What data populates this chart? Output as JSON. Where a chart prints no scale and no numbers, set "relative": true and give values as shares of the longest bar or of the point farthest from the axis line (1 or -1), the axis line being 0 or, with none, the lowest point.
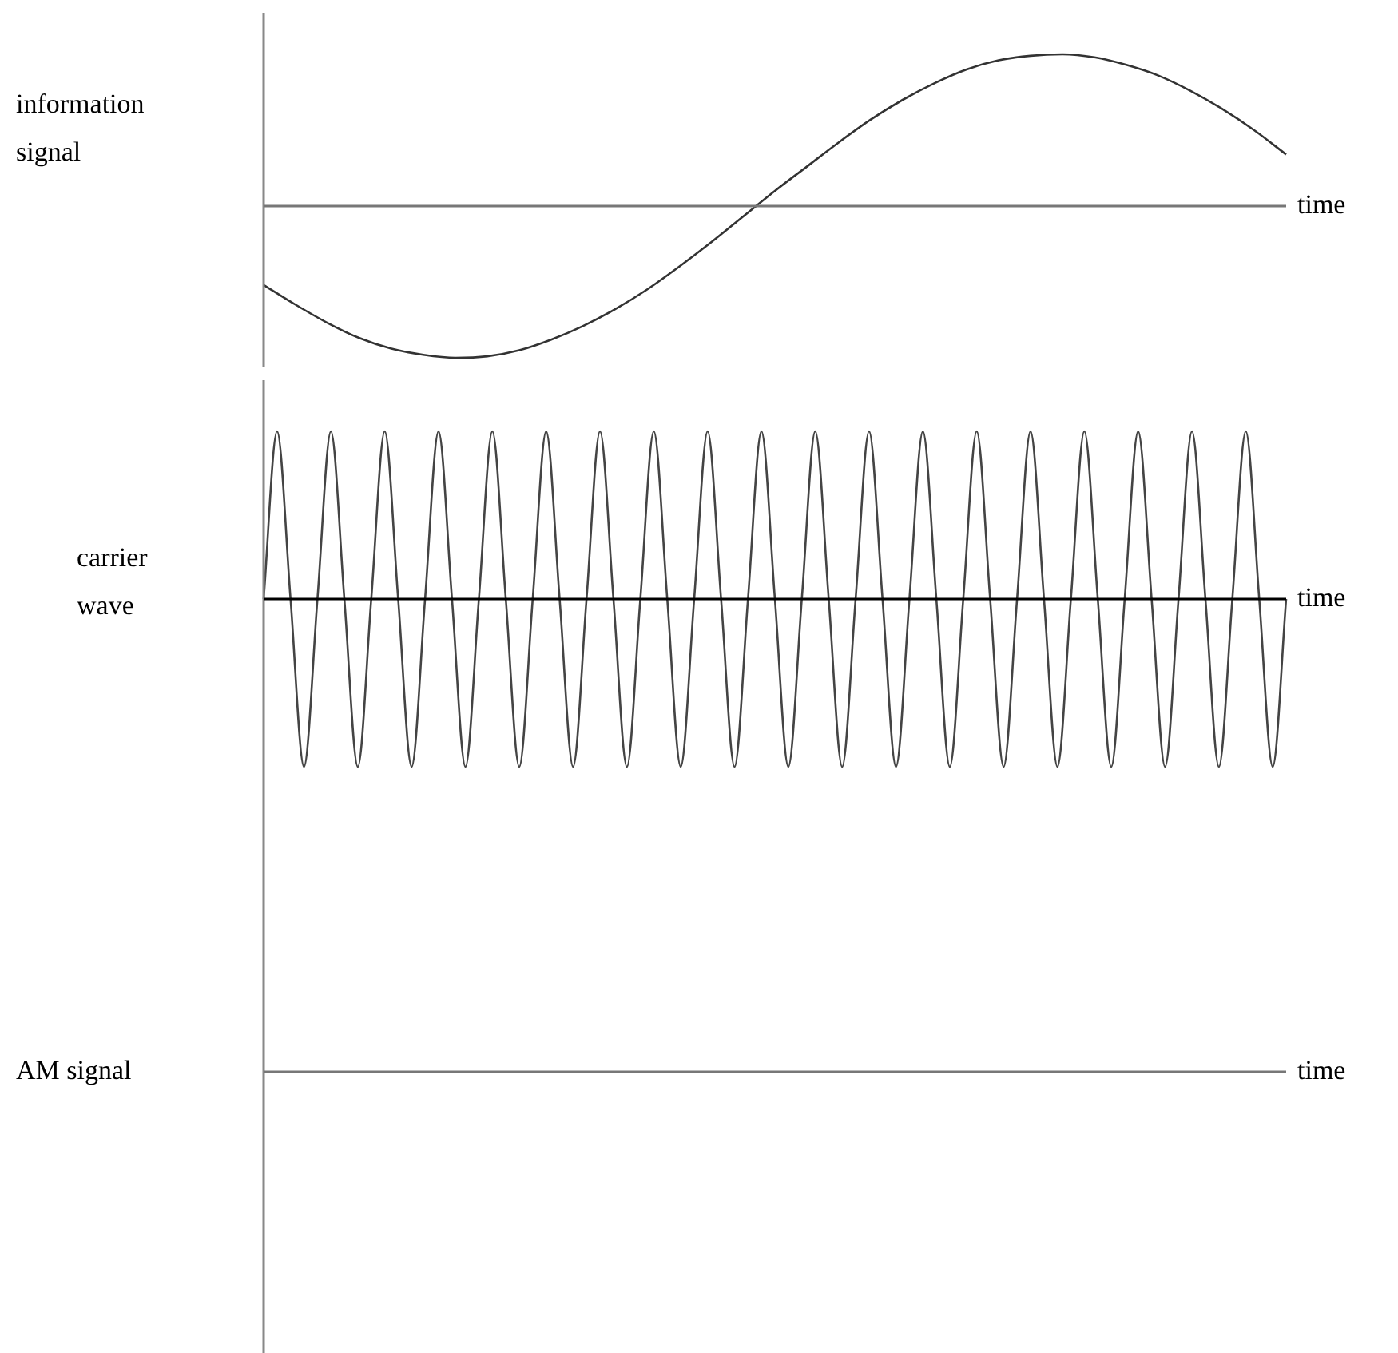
{
  "chart_data": [
    {
      "type": "line",
      "relative": true,
      "ylabel": "information signal",
      "xlabel": "time",
      "legend": false,
      "marker": "none",
      "line_style": "solid",
      "categories": [
        null,
        null,
        null,
        null,
        null,
        null,
        null,
        null,
        null,
        null,
        null,
        null,
        null,
        null,
        null,
        null,
        null,
        null,
        null,
        null,
        null,
        null,
        null,
        null,
        null,
        null,
        null,
        null,
        null,
        null,
        null,
        null,
        null
      ],
      "series": [
        {
          "color": "#333333",
          "values": [
            -0.52,
            -0.65,
            -0.77,
            -0.87,
            -0.94,
            -0.98,
            -1,
            -0.99,
            -0.95,
            -0.88,
            -0.79,
            -0.68,
            -0.55,
            -0.4,
            -0.24,
            -0.07,
            0.1,
            0.26,
            0.42,
            0.57,
            0.7,
            0.81,
            0.9,
            0.96,
            0.99,
            1,
            0.98,
            0.93,
            0.86,
            0.76,
            0.64,
            0.5,
            0.34
          ]
        }
      ]
    },
    {
      "type": "line",
      "relative": true,
      "ylabel": "carrier wave",
      "xlabel": "time",
      "legend": false,
      "marker": "none",
      "line_style": "solid",
      "categories": [
        null,
        null,
        null,
        null,
        null,
        null,
        null,
        null,
        null,
        null,
        null,
        null,
        null,
        null,
        null,
        null,
        null,
        null,
        null,
        null,
        null,
        null,
        null,
        null,
        null,
        null,
        null,
        null,
        null,
        null,
        null,
        null,
        null,
        null,
        null,
        null,
        null,
        null,
        null,
        null,
        null,
        null,
        null,
        null,
        null,
        null,
        null,
        null,
        null,
        null,
        null,
        null,
        null,
        null,
        null,
        null,
        null,
        null,
        null,
        null,
        null,
        null,
        null,
        null,
        null,
        null,
        null,
        null,
        null,
        null,
        null,
        null,
        null,
        null,
        null,
        null,
        null
      ],
      "series": [
        {
          "color": "#444444",
          "values": [
            0,
            1,
            0,
            -1,
            0,
            1,
            0,
            -1,
            0,
            1,
            0,
            -1,
            0,
            1,
            0,
            -1,
            0,
            1,
            0,
            -1,
            0,
            1,
            0,
            -1,
            0,
            1,
            0,
            -1,
            0,
            1,
            0,
            -1,
            0,
            1,
            0,
            -1,
            0,
            1,
            0,
            -1,
            0,
            1,
            0,
            -1,
            0,
            1,
            0,
            -1,
            0,
            1,
            0,
            -1,
            0,
            1,
            0,
            -1,
            0,
            1,
            0,
            -1,
            0,
            1,
            0,
            -1,
            0,
            1,
            0,
            -1,
            0,
            1,
            0,
            -1,
            0,
            1,
            0,
            -1,
            0
          ]
        }
      ]
    },
    {
      "type": "other",
      "ylabel": "AM signal",
      "xlabel": "time"
    }
  ]
}
